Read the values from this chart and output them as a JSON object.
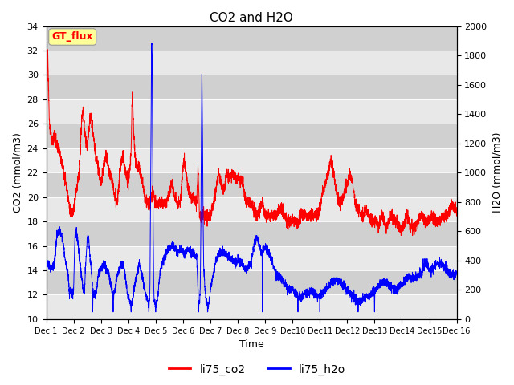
{
  "title": "CO2 and H2O",
  "xlabel": "Time",
  "ylabel_left": "CO2 (mmol/m3)",
  "ylabel_right": "H2O (mmol/m3)",
  "ylim_left": [
    10,
    34
  ],
  "ylim_right": [
    0,
    2000
  ],
  "yticks_left": [
    10,
    12,
    14,
    16,
    18,
    20,
    22,
    24,
    26,
    28,
    30,
    32,
    34
  ],
  "yticks_right": [
    0,
    200,
    400,
    600,
    800,
    1000,
    1200,
    1400,
    1600,
    1800,
    2000
  ],
  "xtick_labels": [
    "Dec 1",
    "Dec 2",
    "Dec 3",
    "Dec 4",
    "Dec 5",
    "Dec 6",
    "Dec 7",
    "Dec 8",
    "Dec 9",
    "Dec10",
    "Dec11",
    "Dec12",
    "Dec13",
    "Dec14",
    "Dec15",
    "Dec 16"
  ],
  "legend_labels": [
    "li75_co2",
    "li75_h2o"
  ],
  "legend_colors": [
    "red",
    "blue"
  ],
  "box_label": "GT_flux",
  "box_color": "#ffff99",
  "box_border": "#999999",
  "line_color_co2": "red",
  "line_color_h2o": "blue",
  "plot_bg_light": "#e8e8e8",
  "plot_bg_dark": "#d0d0d0",
  "title_fontsize": 11,
  "axis_fontsize": 9,
  "tick_fontsize": 8,
  "linewidth": 0.7
}
